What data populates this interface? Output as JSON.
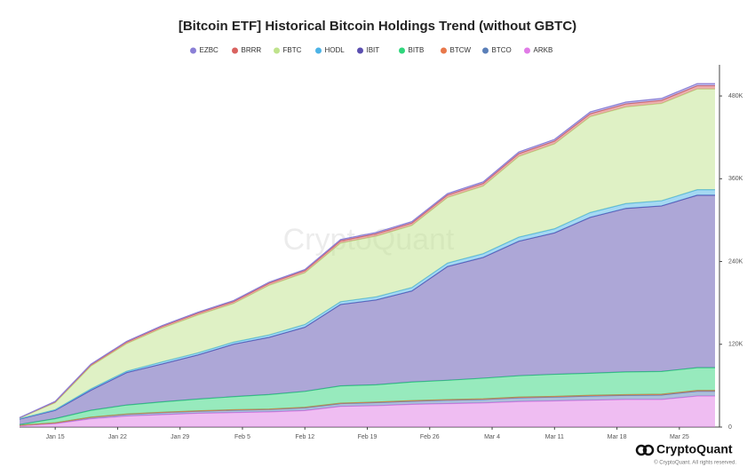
{
  "chart_data": {
    "type": "stacked-area",
    "title": "[Bitcoin ETF] Historical Bitcoin Holdings Trend (without GBTC)",
    "watermark": "CryptoQuant",
    "footer": {
      "brand": "CryptoQuant",
      "copyright": "© CryptoQuant. All rights reserved."
    },
    "x": [
      "Jan 11",
      "Jan 15",
      "Jan 19",
      "Jan 23",
      "Jan 27",
      "Jan 31",
      "Feb 4",
      "Feb 8",
      "Feb 12",
      "Feb 16",
      "Feb 20",
      "Feb 24",
      "Feb 28",
      "Mar 3",
      "Mar 7",
      "Mar 11",
      "Mar 15",
      "Mar 19",
      "Mar 23",
      "Mar 27",
      "Mar 29"
    ],
    "xticks": [
      "Jan 15",
      "Jan 22",
      "Jan 29",
      "Feb 5",
      "Feb 12",
      "Feb 19",
      "Feb 26",
      "Mar 4",
      "Mar 11",
      "Mar 18",
      "Mar 25"
    ],
    "ylim": [
      0,
      520000
    ],
    "yticks": [
      0,
      {
        "value": 120000,
        "label": "120K"
      },
      {
        "value": 240000,
        "label": "240K"
      },
      {
        "value": 360000,
        "label": "360K"
      },
      {
        "value": 480000,
        "label": "480K"
      }
    ],
    "y_axis_side": "right",
    "grid": false,
    "series": [
      {
        "name": "EZBC",
        "color": "#8a7fd6",
        "values": [
          200,
          500,
          800,
          1000,
          1200,
          1300,
          1400,
          1500,
          1600,
          1800,
          1900,
          2000,
          2100,
          2200,
          2400,
          2500,
          2600,
          2700,
          2800,
          3000,
          3000
        ]
      },
      {
        "name": "BRRR",
        "color": "#d9625f",
        "values": [
          300,
          1500,
          2000,
          2300,
          2500,
          2700,
          2800,
          3000,
          3100,
          3300,
          3400,
          3500,
          3600,
          3800,
          4000,
          4000,
          4200,
          4400,
          4500,
          4700,
          4700
        ]
      },
      {
        "name": "FBTC",
        "color": "#bfe38c",
        "values": [
          1000,
          10000,
          33000,
          40000,
          49000,
          55000,
          56000,
          72000,
          75000,
          85000,
          88000,
          90000,
          95000,
          98000,
          117000,
          123000,
          139000,
          140000,
          141000,
          146000,
          146000
        ]
      },
      {
        "name": "HODL",
        "color": "#4cb3e6",
        "values": [
          500,
          1000,
          2000,
          2000,
          3000,
          3000,
          3000,
          3500,
          4000,
          4000,
          4500,
          5000,
          5000,
          5500,
          6000,
          6000,
          7000,
          7000,
          7500,
          8000,
          8000
        ]
      },
      {
        "name": "IBIT",
        "color": "#5b4fb0",
        "values": [
          8000,
          12000,
          29000,
          47000,
          55000,
          64000,
          76000,
          83000,
          93000,
          118000,
          123000,
          132000,
          165000,
          175000,
          195000,
          205000,
          226000,
          237000,
          240000,
          250000,
          250000
        ]
      },
      {
        "name": "BITB",
        "color": "#2fd67c",
        "values": [
          1000,
          6000,
          10000,
          13000,
          15000,
          17000,
          19000,
          21000,
          23000,
          25000,
          25000,
          27000,
          28000,
          30000,
          31000,
          32000,
          32000,
          33000,
          33000,
          33000,
          33000
        ]
      },
      {
        "name": "BTCW",
        "color": "#e8784a",
        "values": [
          100,
          200,
          300,
          400,
          500,
          500,
          600,
          600,
          700,
          700,
          800,
          800,
          800,
          900,
          900,
          1000,
          1000,
          1000,
          1100,
          1100,
          1100
        ]
      },
      {
        "name": "BTCO",
        "color": "#5a7fb8",
        "values": [
          500,
          1000,
          2000,
          2500,
          3000,
          3000,
          3500,
          3500,
          4000,
          4000,
          4500,
          4500,
          5000,
          5000,
          5500,
          5500,
          6000,
          6000,
          6500,
          7000,
          7000
        ]
      },
      {
        "name": "ARKB",
        "color": "#e07be6",
        "values": [
          2000,
          5000,
          12000,
          16000,
          18000,
          20000,
          21000,
          22000,
          24000,
          30000,
          31000,
          33000,
          34000,
          35000,
          37000,
          38000,
          39000,
          40000,
          40000,
          45000,
          45000
        ]
      }
    ]
  }
}
